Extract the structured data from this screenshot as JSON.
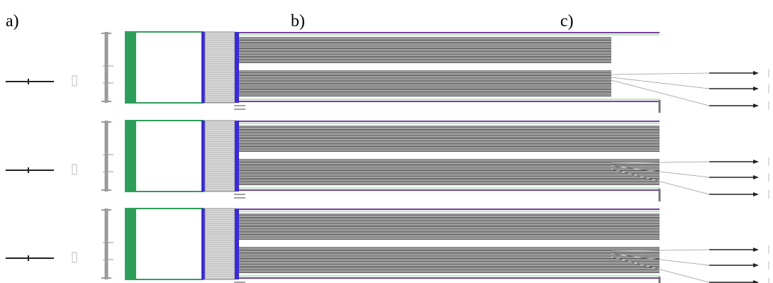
{
  "panel_labels": [
    "a)",
    "b)",
    "c)"
  ],
  "colors": {
    "tube": "#2e9e5b",
    "electrode": "#3a2bd8",
    "mesh": "#8c8c8c",
    "wire": "#1a1a1a",
    "lead": "#7b3fa0",
    "frame": "#9a9a9a",
    "thin_green": "#7ecb7e"
  },
  "diagrams": [
    {
      "name": "diagram-row-1",
      "stacks": [
        "wire-stack-upper",
        "wire-stack-lower"
      ]
    },
    {
      "name": "diagram-row-2",
      "stacks": [
        "wire-stack-upper",
        "wire-stack-lower"
      ]
    },
    {
      "name": "diagram-row-3",
      "stacks": [
        "wire-stack-upper",
        "wire-stack-lower"
      ]
    }
  ]
}
